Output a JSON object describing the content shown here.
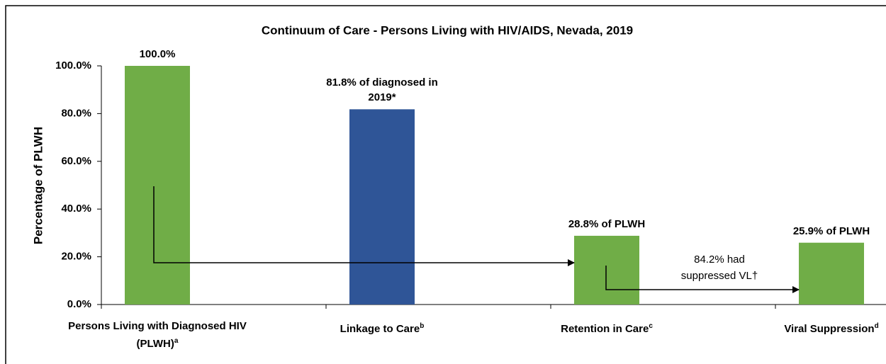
{
  "chart_data": {
    "type": "bar",
    "title": "Continuum of Care - Persons Living with HIV/AIDS, Nevada, 2019",
    "y_label": "Percentage of PLWH",
    "categories": [
      "Persons Living with Diagnosed HIV (PLWH)",
      "Linkage to Care",
      "Retention in Care",
      "Viral Suppression"
    ],
    "category_notes": [
      "a",
      "b",
      "c",
      "d"
    ],
    "values": [
      100,
      81.8,
      28.8,
      25.9
    ],
    "value_labels": [
      "100.0%",
      "81.8% of diagnosed in 2019*",
      "28.8% of PLWH",
      "25.9% of PLWH"
    ],
    "colors": [
      "#70ad47",
      "#2f5597",
      "#70ad47",
      "#70ad47"
    ],
    "ylim": [
      0,
      100
    ],
    "yticks": [
      {
        "value": 0,
        "label": "0.0%"
      },
      {
        "value": 20,
        "label": "20.0%"
      },
      {
        "value": 40,
        "label": "40.0%"
      },
      {
        "value": 60,
        "label": "60.0%"
      },
      {
        "value": 80,
        "label": "80.0%"
      },
      {
        "value": 100,
        "label": "100.0%"
      }
    ],
    "annotation": "84.2% had suppressed VL†",
    "grid": false
  }
}
